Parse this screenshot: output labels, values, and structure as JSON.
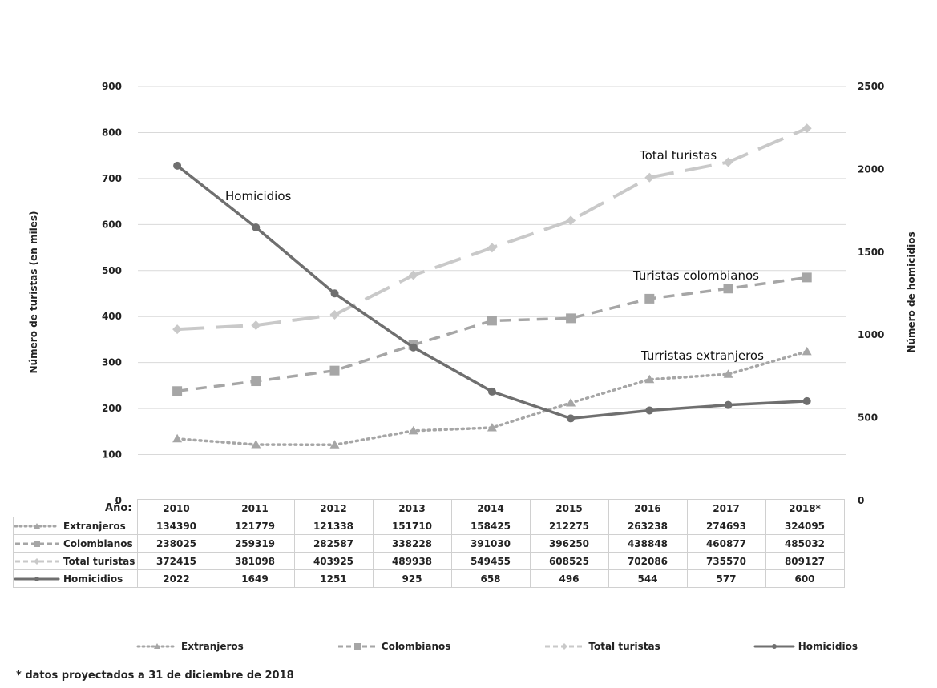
{
  "chart_data": {
    "type": "line",
    "categories": [
      "2010",
      "2011",
      "2012",
      "2013",
      "2014",
      "2015",
      "2016",
      "2017",
      "2018*"
    ],
    "y_left": {
      "label": "Número de turistas (en miles)",
      "ticks": [
        "0",
        "100",
        "200",
        "300",
        "400",
        "500",
        "600",
        "700",
        "800",
        "900"
      ],
      "ylim": [
        0,
        900
      ]
    },
    "y_right": {
      "label": "Número de homicidios",
      "ticks": [
        "0",
        "500",
        "1000",
        "1500",
        "2000",
        "2500"
      ],
      "ylim": [
        0,
        2500
      ]
    },
    "grid": true,
    "legend_position": "bottom",
    "series": [
      {
        "name": "Extranjeros",
        "axis": "left",
        "values": [
          134390,
          121779,
          121338,
          151710,
          158425,
          212275,
          263238,
          274693,
          324095
        ],
        "color": "#a6a6a6",
        "style": "dotted",
        "marker": "triangle",
        "annotation": "Turristas extranjeros"
      },
      {
        "name": "Colombianos",
        "axis": "left",
        "values": [
          238025,
          259319,
          282587,
          338228,
          391030,
          396250,
          438848,
          460877,
          485032
        ],
        "color": "#a6a6a6",
        "style": "dashed",
        "marker": "square",
        "annotation": "Turistas colombianos"
      },
      {
        "name": "Total turistas",
        "axis": "left",
        "values": [
          372415,
          381098,
          403925,
          489938,
          549455,
          608525,
          702086,
          735570,
          809127
        ],
        "color": "#c9c9c9",
        "style": "longdash",
        "marker": "diamond",
        "annotation": "Total turistas"
      },
      {
        "name": "Homicidios",
        "axis": "right",
        "values": [
          2022,
          1649,
          1251,
          925,
          658,
          496,
          544,
          577,
          600
        ],
        "color": "#6f6f6f",
        "style": "solid",
        "marker": "circle",
        "annotation": "Homicidios"
      }
    ]
  },
  "table": {
    "corner_label": "Año:"
  },
  "footnote": "* datos proyectados a 31 de diciembre de 2018"
}
